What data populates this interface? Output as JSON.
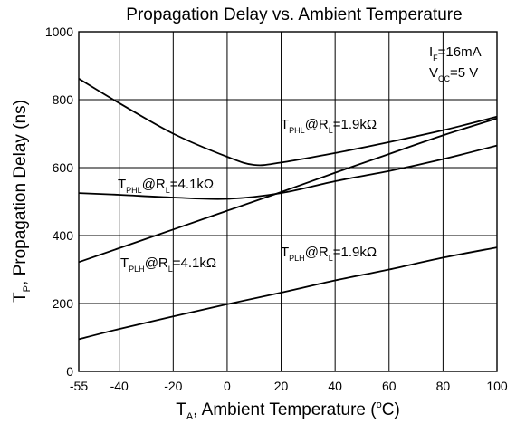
{
  "chart_data": {
    "type": "line",
    "title": "Propagation Delay vs. Ambient Temperature",
    "xlabel": {
      "main": "T",
      "sub": "A",
      "rest": ", Ambient Temperature (",
      "sup": "o",
      "tail": "C)"
    },
    "ylabel": {
      "main": "T",
      "sub": "P",
      "rest": ", Propagation Delay (ns)"
    },
    "xlim": [
      -55,
      100
    ],
    "ylim": [
      0,
      1000
    ],
    "x_ticks": [
      -55,
      -40,
      -20,
      0,
      20,
      40,
      60,
      80,
      100
    ],
    "y_ticks": [
      0,
      200,
      400,
      600,
      800,
      1000
    ],
    "grid": true,
    "conditions": [
      {
        "main": "I",
        "sub": "F",
        "rest": "=16mA"
      },
      {
        "main": "V",
        "sub": "CC",
        "rest": "=5 V"
      }
    ],
    "series": [
      {
        "name": "T_PHL @ R_L = 1.9kΩ",
        "label": {
          "main": "T",
          "sub1": "PHL",
          "mid": "@R",
          "sub2": "L",
          "rest": "=1.9kΩ"
        },
        "x": [
          -55,
          -40,
          -20,
          0,
          10,
          20,
          40,
          60,
          80,
          100
        ],
        "y": [
          862,
          790,
          700,
          632,
          608,
          615,
          643,
          675,
          710,
          750
        ]
      },
      {
        "name": "T_PHL @ R_L = 4.1kΩ",
        "label": {
          "main": "T",
          "sub1": "PHL",
          "mid": "@R",
          "sub2": "L",
          "rest": "=4.1kΩ"
        },
        "x": [
          -55,
          -40,
          -20,
          0,
          20,
          40,
          60,
          80,
          100
        ],
        "y": [
          525,
          520,
          512,
          508,
          525,
          560,
          590,
          625,
          665
        ]
      },
      {
        "name": "T_PLH @ R_L = 4.1kΩ",
        "label": {
          "main": "T",
          "sub1": "PLH",
          "mid": "@R",
          "sub2": "L",
          "rest": "=4.1kΩ"
        },
        "x": [
          -55,
          -20,
          0,
          20,
          40,
          60,
          80,
          100
        ],
        "y": [
          322,
          418,
          473,
          528,
          585,
          640,
          695,
          745
        ]
      },
      {
        "name": "T_PLH @ R_L = 1.9kΩ",
        "label": {
          "main": "T",
          "sub1": "PLH",
          "mid": "@R",
          "sub2": "L",
          "rest": "=1.9kΩ"
        },
        "x": [
          -55,
          -40,
          -20,
          0,
          20,
          40,
          60,
          80,
          100
        ],
        "y": [
          95,
          125,
          162,
          198,
          232,
          268,
          300,
          335,
          365
        ]
      }
    ]
  }
}
